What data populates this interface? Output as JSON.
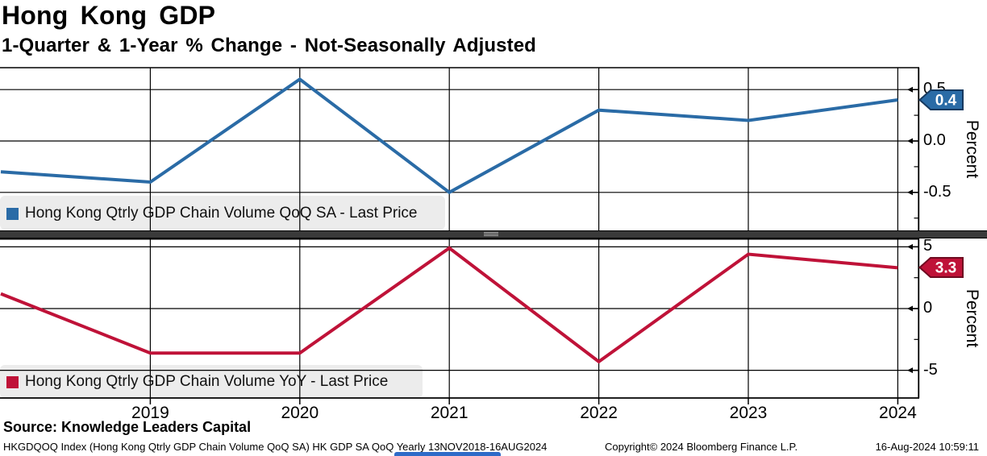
{
  "title": "Hong Kong GDP",
  "subtitle": "1-Quarter & 1-Year % Change - Not-Seasonally Adjusted",
  "source_line": "Source: Knowledge Leaders Capital",
  "footer": {
    "left": "HKGDQOQ Index (Hong Kong Qtrly GDP Chain Volume QoQ SA) HK GDP SA QoQ  Yearly 13NOV2018-16AUG2024",
    "center": "Copyright© 2024 Bloomberg Finance L.P.",
    "right": "16-Aug-2024 10:59:11"
  },
  "colors": {
    "blue": "#2a6ba6",
    "blue_dark": "#16395f",
    "red": "#bf1238",
    "red_dark": "#6f0a20",
    "legend_bg": "#ececec",
    "grid": "#000000",
    "separator": "#3a3a3a",
    "bottom_strip": "#2e6bc8"
  },
  "x_axis": {
    "labels": [
      "2019",
      "2020",
      "2021",
      "2022",
      "2023",
      "2024"
    ]
  },
  "chart_data": [
    {
      "type": "line",
      "panel": "top",
      "legend": "Hong Kong Qtrly GDP Chain Volume QoQ SA - Last Price",
      "x": [
        2018,
        2019,
        2020,
        2021,
        2022,
        2023,
        2024
      ],
      "values": [
        -0.3,
        -0.4,
        0.6,
        -0.5,
        0.3,
        0.2,
        0.4
      ],
      "last_price_label": "0.4",
      "ylabel": "Percent",
      "yticks": [
        0.5,
        0.0,
        -0.5
      ],
      "ytick_labels": [
        "0.5",
        "0.0",
        "-0.5"
      ],
      "ylim": [
        -0.86,
        0.73
      ],
      "grid": true,
      "legend_position": "bottom-left",
      "color": "#2a6ba6",
      "tag_border": "#16395f"
    },
    {
      "type": "line",
      "panel": "bottom",
      "legend": "Hong Kong Qtrly GDP Chain Volume YoY - Last Price",
      "x": [
        2018,
        2019,
        2020,
        2021,
        2022,
        2023,
        2024
      ],
      "values": [
        1.2,
        -3.6,
        -3.6,
        4.9,
        -4.3,
        4.4,
        3.3
      ],
      "last_price_label": "3.3",
      "ylabel": "Percent",
      "yticks": [
        5,
        0,
        -5
      ],
      "ytick_labels": [
        "5",
        "0",
        "-5"
      ],
      "ylim": [
        -7.2,
        5.6
      ],
      "grid": true,
      "legend_position": "bottom-left",
      "color": "#bf1238",
      "tag_border": "#6f0a20"
    }
  ]
}
